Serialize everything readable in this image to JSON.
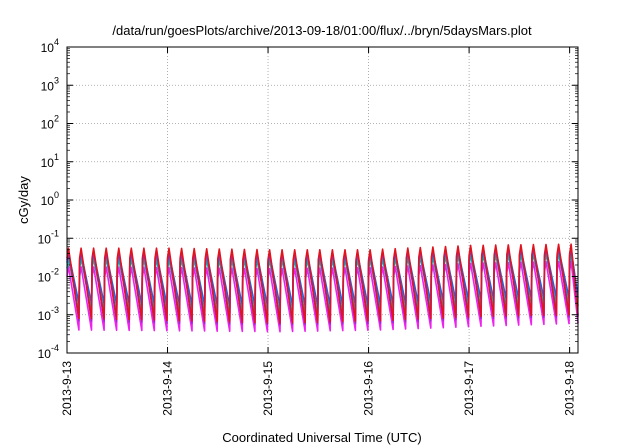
{
  "chart_data": {
    "type": "line",
    "title": "/data/run/goesPlots/archive/2013-09-18/01:00/flux/../bryn/5daysMars.plot",
    "xlabel": "Coordinated Universal Time (UTC)",
    "ylabel": "cGy/day",
    "y_scale": "log",
    "ylim": [
      0.0001,
      10000
    ],
    "xlim": [
      "2013-09-13T00:00",
      "2013-09-18T02:00"
    ],
    "grid": true,
    "legend": "none",
    "y_ticks": [
      {
        "base": "10",
        "exp": "-4"
      },
      {
        "base": "10",
        "exp": "-3"
      },
      {
        "base": "10",
        "exp": "-2"
      },
      {
        "base": "10",
        "exp": "-1"
      },
      {
        "base": "10",
        "exp": "0"
      },
      {
        "base": "10",
        "exp": "1"
      },
      {
        "base": "10",
        "exp": "2"
      },
      {
        "base": "10",
        "exp": "3"
      },
      {
        "base": "10",
        "exp": "4"
      }
    ],
    "x_ticks": [
      "2013-9-13",
      "2013-9-14",
      "2013-9-15",
      "2013-9-16",
      "2013-9-17",
      "2013-9-18"
    ],
    "sawtooth_period_hours": 3,
    "series": [
      {
        "color": "#e0141e",
        "peak": [
          0.055,
          0.055,
          0.05,
          0.05,
          0.065,
          0.07
        ],
        "trough": [
          0.0008,
          0.0007,
          0.0006,
          0.0007,
          0.0009,
          0.001
        ]
      },
      {
        "color": "#9a2ad0",
        "peak": [
          0.048,
          0.046,
          0.043,
          0.044,
          0.058,
          0.062
        ],
        "trough": [
          0.0007,
          0.0006,
          0.00055,
          0.0006,
          0.0008,
          0.0009
        ]
      },
      {
        "color": "#2a5fd8",
        "peak": [
          0.042,
          0.04,
          0.038,
          0.04,
          0.05,
          0.055
        ],
        "trough": [
          0.002,
          0.0018,
          0.0017,
          0.0018,
          0.0025,
          0.0028
        ]
      },
      {
        "color": "#1aa7a7",
        "peak": [
          0.03,
          0.028,
          0.027,
          0.028,
          0.036,
          0.04
        ],
        "trough": [
          0.0012,
          0.0011,
          0.001,
          0.0011,
          0.0015,
          0.0017
        ]
      },
      {
        "color": "#ee22ee",
        "peak": [
          0.018,
          0.017,
          0.016,
          0.017,
          0.022,
          0.025
        ],
        "trough": [
          0.0004,
          0.00038,
          0.00036,
          0.0004,
          0.0005,
          0.0006
        ]
      }
    ],
    "series_colors": [
      "#e0141e",
      "#9a2ad0",
      "#2a5fd8",
      "#1aa7a7",
      "#ee22ee"
    ]
  }
}
